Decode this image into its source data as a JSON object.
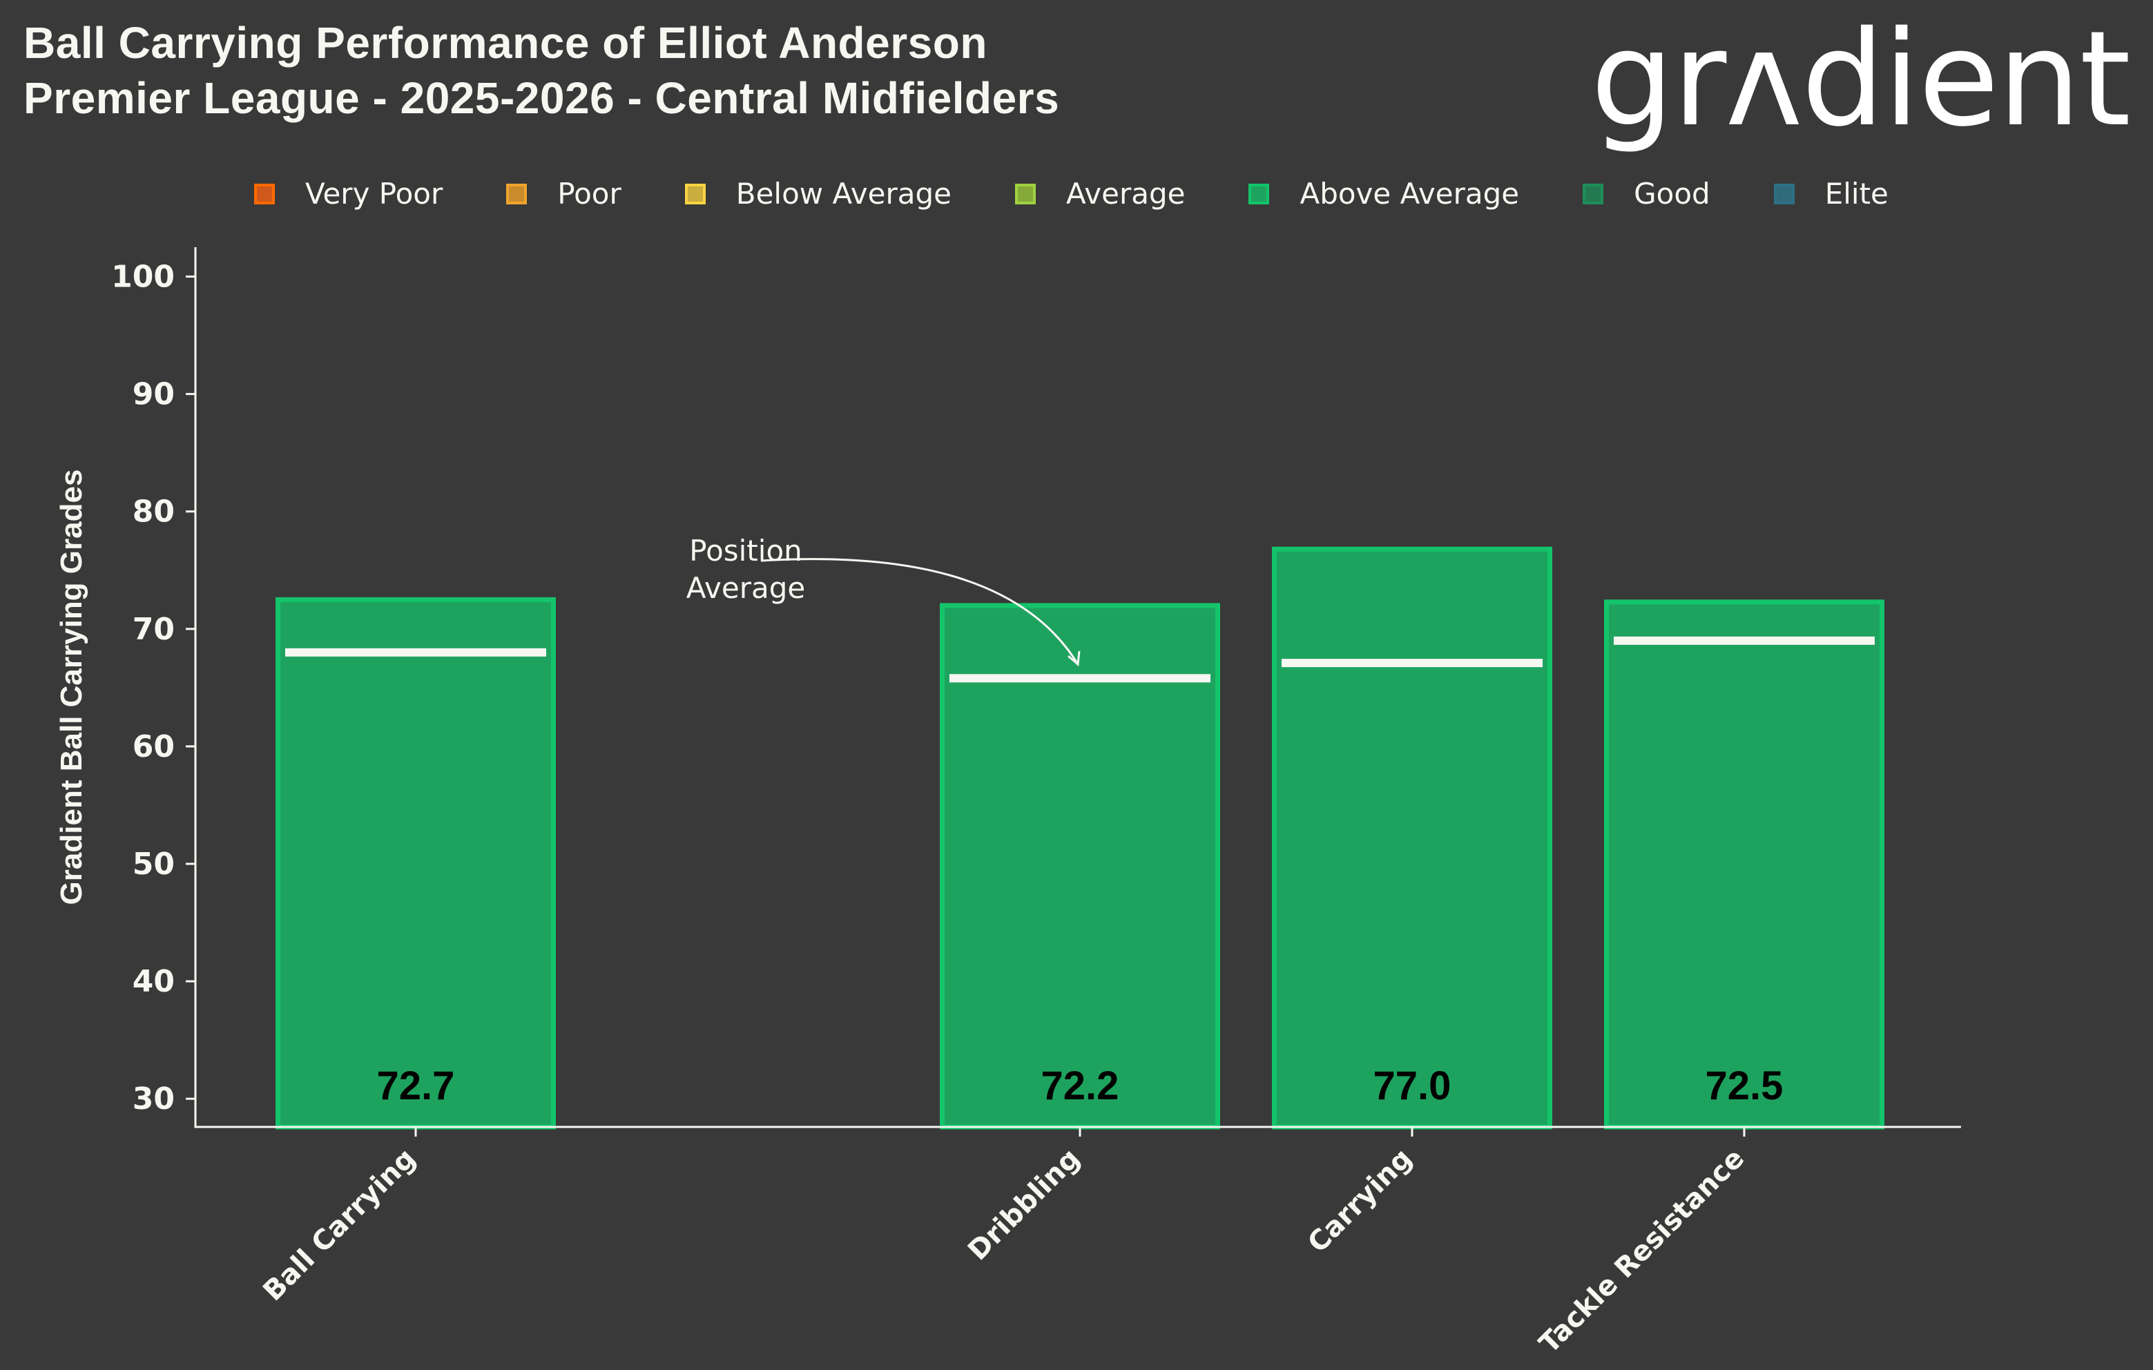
{
  "header": {
    "title_line1": "Ball Carrying Performance of Elliot Anderson",
    "title_line2": "Premier League - 2025-2026 - Central Midfielders",
    "logo_text": "grʌdient"
  },
  "legend": [
    {
      "label": "Very Poor",
      "border": "#ff6a00",
      "fill": "#d0581a"
    },
    {
      "label": "Poor",
      "border": "#f0a52e",
      "fill": "#c98b2b"
    },
    {
      "label": "Below Average",
      "border": "#f9d342",
      "fill": "#c9ad3d"
    },
    {
      "label": "Average",
      "border": "#9fd141",
      "fill": "#86aa39"
    },
    {
      "label": "Above Average",
      "border": "#13c46a",
      "fill": "#1ea35f"
    },
    {
      "label": "Good",
      "border": "#1d8e58",
      "fill": "#247a50"
    },
    {
      "label": "Elite",
      "border": "#2c7085",
      "fill": "#306a79"
    }
  ],
  "annotation": {
    "line1": "Position",
    "line2": "Average"
  },
  "chart_data": {
    "type": "bar",
    "title": "Ball Carrying Performance of Elliot Anderson",
    "subtitle": "Premier League - 2025-2026 - Central Midfielders",
    "xlabel": "",
    "ylabel": "Gradient Ball Carrying Grades",
    "ylim": [
      27.6,
      102.5
    ],
    "yticks": [
      30,
      40,
      50,
      60,
      70,
      80,
      90,
      100
    ],
    "grid": false,
    "legend_position": "top",
    "categories": [
      "Ball Carrying",
      "Dribbling",
      "Carrying",
      "Tackle Resistance"
    ],
    "category_slots": [
      0,
      2,
      3,
      4
    ],
    "slot_count": 5,
    "values": [
      72.7,
      72.2,
      77.0,
      72.5
    ],
    "value_labels": [
      "72.7",
      "72.2",
      "77.0",
      "72.5"
    ],
    "position_average": [
      68.0,
      65.8,
      67.1,
      69.0
    ],
    "grade": [
      "Above Average",
      "Above Average",
      "Above Average",
      "Above Average"
    ],
    "bar_fill": "#1ea35f",
    "bar_border": "#13c46a"
  }
}
